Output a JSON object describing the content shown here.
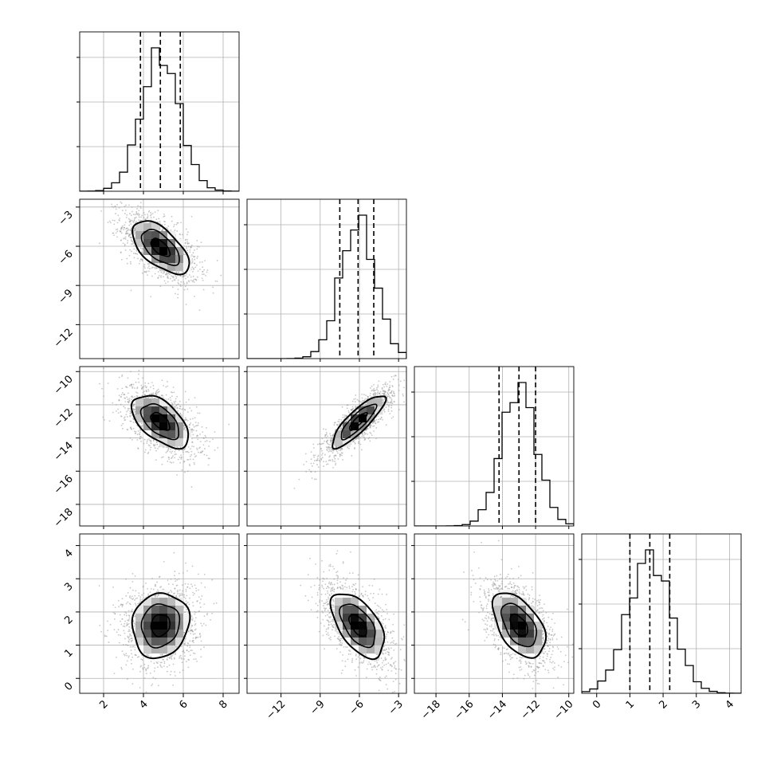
{
  "chart_data": {
    "type": "corner",
    "params": [
      {
        "key": "p0",
        "range": [
          0.8,
          8.8
        ],
        "ticks": [
          2,
          4,
          6,
          8
        ],
        "tick_labels": [
          "2",
          "4",
          "6",
          "8"
        ],
        "mean": 4.85,
        "sigma": 0.95,
        "quantiles": [
          3.85,
          4.85,
          5.85
        ]
      },
      {
        "key": "p1",
        "range": [
          -14.6,
          -2.4
        ],
        "ticks": [
          -12,
          -9,
          -6,
          -3
        ],
        "tick_labels": [
          "−12",
          "−9",
          "−6",
          "−3"
        ],
        "mean": -6.1,
        "sigma": 1.35,
        "quantiles": [
          -7.5,
          -6.1,
          -4.9
        ]
      },
      {
        "key": "p2",
        "range": [
          -19.3,
          -9.7
        ],
        "ticks": [
          -18,
          -16,
          -14,
          -12,
          -10
        ],
        "tick_labels": [
          "−18",
          "−16",
          "−14",
          "−12",
          "−10"
        ],
        "mean": -13.0,
        "sigma": 1.05,
        "quantiles": [
          -14.2,
          -13.0,
          -12.0
        ]
      },
      {
        "key": "p3",
        "range": [
          -0.45,
          4.35
        ],
        "ticks": [
          0,
          1,
          2,
          3,
          4
        ],
        "tick_labels": [
          "0",
          "1",
          "2",
          "3",
          "4"
        ],
        "mean": 1.6,
        "sigma": 0.65,
        "quantiles": [
          1.0,
          1.6,
          2.2
        ]
      }
    ],
    "correlations": [
      [
        1,
        -0.6,
        -0.55,
        0.1
      ],
      [
        -0.6,
        1,
        0.85,
        -0.55
      ],
      [
        -0.55,
        0.85,
        1,
        -0.5
      ],
      [
        0.1,
        -0.55,
        -0.5,
        1
      ]
    ],
    "grid": true,
    "quantile_lines": "dashed",
    "contour_levels": [
      0.5,
      1.0,
      1.5
    ]
  }
}
